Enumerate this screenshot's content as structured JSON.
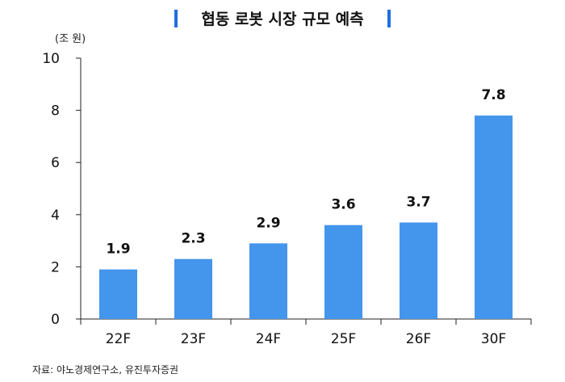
{
  "chart_data": {
    "type": "bar",
    "title": "협동 로봇 시장 규모 예측",
    "unit_label": "(조 원)",
    "categories": [
      "22F",
      "23F",
      "24F",
      "25F",
      "26F",
      "30F"
    ],
    "values": [
      1.9,
      2.3,
      2.9,
      3.6,
      3.7,
      7.8
    ],
    "data_labels": [
      "1.9",
      "2.3",
      "2.9",
      "3.6",
      "3.7",
      "7.8"
    ],
    "yticks": [
      0,
      2,
      4,
      6,
      8,
      10
    ],
    "ylim": [
      0,
      10
    ],
    "xlabel": "",
    "ylabel": "",
    "grid": false,
    "bar_color": "#4495EC",
    "title_accent_color": "#1F6FE0",
    "source": "자료: 야노경제연구소, 유진투자증권"
  }
}
